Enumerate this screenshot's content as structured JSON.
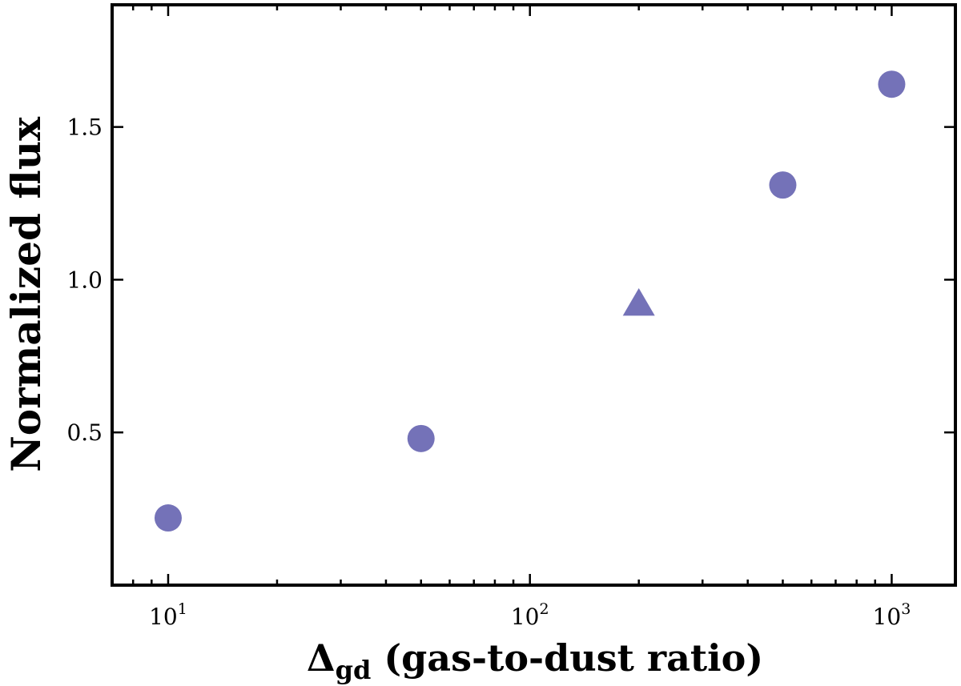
{
  "chart_data": {
    "type": "scatter",
    "title": "",
    "xlabel_main": "Δ",
    "xlabel_sub": "gd",
    "xlabel_rest": " (gas-to-dust ratio)",
    "ylabel": "Normalized flux",
    "xscale": "log",
    "xlim": [
      7,
      1500
    ],
    "ylim": [
      0,
      1.9
    ],
    "x_ticks": [
      {
        "value": 10,
        "base": "10",
        "exp": "1"
      },
      {
        "value": 100,
        "base": "10",
        "exp": "2"
      },
      {
        "value": 1000,
        "base": "10",
        "exp": "3"
      }
    ],
    "y_ticks": [
      {
        "value": 0.5,
        "label": "0.5"
      },
      {
        "value": 1.0,
        "label": "1.0"
      },
      {
        "value": 1.5,
        "label": "1.5"
      }
    ],
    "grid": false,
    "color": "#7472b8",
    "points": [
      {
        "x": 10,
        "y": 0.22,
        "marker": "circle"
      },
      {
        "x": 50,
        "y": 0.48,
        "marker": "circle"
      },
      {
        "x": 200,
        "y": 0.92,
        "marker": "triangle"
      },
      {
        "x": 500,
        "y": 1.31,
        "marker": "circle"
      },
      {
        "x": 1000,
        "y": 1.64,
        "marker": "circle"
      }
    ]
  }
}
